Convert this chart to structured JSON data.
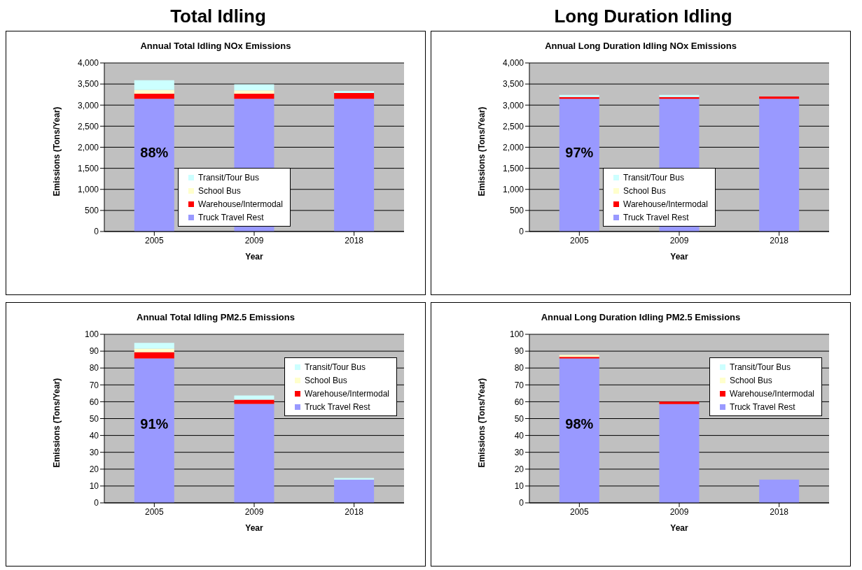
{
  "chart_data": [
    {
      "type": "bar",
      "stacked": true,
      "title": "Annual Total Idling NOx Emissions",
      "xlabel": "Year",
      "ylabel": "Emissions (Tons/Year)",
      "categories": [
        "2005",
        "2009",
        "2018"
      ],
      "series": [
        {
          "name": "Truck Travel Rest",
          "color": "#9999ff",
          "values": [
            3150,
            3150,
            3150
          ]
        },
        {
          "name": "Warehouse/Intermodal",
          "color": "#ff0000",
          "values": [
            120,
            120,
            135
          ]
        },
        {
          "name": "School Bus",
          "color": "#ffffcc",
          "values": [
            90,
            80,
            0
          ]
        },
        {
          "name": "Transit/Tour Bus",
          "color": "#ccffff",
          "values": [
            230,
            145,
            50
          ]
        }
      ],
      "ylim": [
        0,
        4000
      ],
      "yticks": [
        0,
        500,
        {
          "value": 1000,
          "label": "1,000"
        },
        {
          "value": 1500,
          "label": "1,500"
        },
        {
          "value": 2000,
          "label": "2,000"
        },
        {
          "value": 2500,
          "label": "2,500"
        },
        {
          "value": 3000,
          "label": "3,000"
        },
        {
          "value": 3500,
          "label": "3,500"
        },
        {
          "value": 4000,
          "label": "4,000"
        }
      ],
      "grid": "y",
      "legend": "center",
      "subtitle": "Total Idling",
      "annotations": [
        "88%"
      ]
    },
    {
      "type": "bar",
      "stacked": true,
      "title": "Annual Long Duration Idling NOx Emissions",
      "xlabel": "Year",
      "ylabel": "Emissions (Tons/Year)",
      "categories": [
        "2005",
        "2009",
        "2018"
      ],
      "series": [
        {
          "name": "Truck Travel Rest",
          "color": "#9999ff",
          "values": [
            3150,
            3150,
            3150
          ]
        },
        {
          "name": "Warehouse/Intermodal",
          "color": "#ff0000",
          "values": [
            40,
            40,
            55
          ]
        },
        {
          "name": "School Bus",
          "color": "#ffffcc",
          "values": [
            null,
            null,
            0
          ]
        },
        {
          "name": "Transit/Tour Bus",
          "color": "#ccffff",
          "values": [
            50,
            50,
            0
          ]
        }
      ],
      "ylim": [
        0,
        4000
      ],
      "yticks": [
        0,
        500,
        {
          "value": 1000,
          "label": "1,000"
        },
        {
          "value": 1500,
          "label": "1,500"
        },
        {
          "value": 2000,
          "label": "2,000"
        },
        {
          "value": 2500,
          "label": "2,500"
        },
        {
          "value": 3000,
          "label": "3,000"
        },
        {
          "value": 3500,
          "label": "3,500"
        },
        {
          "value": 4000,
          "label": "4,000"
        }
      ],
      "grid": "y",
      "legend": "center",
      "subtitle": "Long Duration Idling",
      "annotations": [
        "97%"
      ]
    },
    {
      "type": "bar",
      "stacked": true,
      "title": "Annual Total Idling PM2.5 Emissions",
      "xlabel": "Year",
      "ylabel": "Emissions (Tons/Year)",
      "categories": [
        "2005",
        "2009",
        "2018"
      ],
      "series": [
        {
          "name": "Truck Travel Rest",
          "color": "#9999ff",
          "values": [
            85.7,
            58.7,
            13.8
          ]
        },
        {
          "name": "Warehouse/Intermodal",
          "color": "#ff0000",
          "values": [
            3.7,
            2.5,
            0
          ]
        },
        {
          "name": "School Bus",
          "color": "#ffffcc",
          "values": [
            2.1,
            0,
            0
          ]
        },
        {
          "name": "Transit/Tour Bus",
          "color": "#ccffff",
          "values": [
            3.4,
            2.5,
            0.9
          ]
        }
      ],
      "ylim": [
        0,
        100
      ],
      "yticks": [
        0,
        10,
        20,
        30,
        40,
        50,
        60,
        70,
        80,
        90,
        100
      ],
      "grid": "y",
      "legend": "top right",
      "annotations": [
        "91%"
      ]
    },
    {
      "type": "bar",
      "stacked": true,
      "title": "Annual Long Duration Idling PM2.5 Emissions",
      "xlabel": "Year",
      "ylabel": "Emissions (Tons/Year)",
      "categories": [
        "2005",
        "2009",
        "2018"
      ],
      "series": [
        {
          "name": "Truck Travel Rest",
          "color": "#9999ff",
          "values": [
            85.7,
            58.6,
            13.8
          ]
        },
        {
          "name": "Warehouse/Intermodal",
          "color": "#ff0000",
          "values": [
            0.9,
            1.5,
            0
          ]
        },
        {
          "name": "School Bus",
          "color": "#ffffcc",
          "values": [
            1.2,
            0,
            0
          ]
        },
        {
          "name": "Transit/Tour Bus",
          "color": "#ccffff",
          "values": [
            0,
            0,
            0
          ]
        }
      ],
      "ylim": [
        0,
        100
      ],
      "yticks": [
        0,
        10,
        20,
        30,
        40,
        50,
        60,
        70,
        80,
        90,
        100
      ],
      "grid": "y",
      "legend": "top right",
      "annotations": [
        "98%"
      ]
    }
  ]
}
